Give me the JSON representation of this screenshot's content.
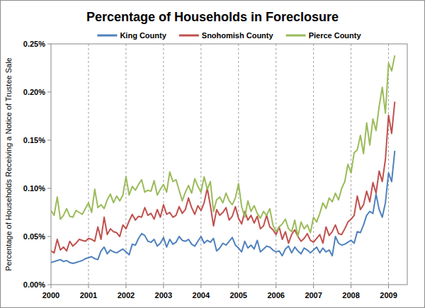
{
  "chart_data": {
    "type": "line",
    "title": "Percentage of Households in Foreclosure",
    "y_label": "Percentage of Households Receiving a Notice of Trustee Sale",
    "categories": [
      "2000",
      null,
      null,
      null,
      null,
      null,
      null,
      null,
      null,
      null,
      null,
      null,
      "2001",
      null,
      null,
      null,
      null,
      null,
      null,
      null,
      null,
      null,
      null,
      null,
      "2002",
      null,
      null,
      null,
      null,
      null,
      null,
      null,
      null,
      null,
      null,
      null,
      "2003",
      null,
      null,
      null,
      null,
      null,
      null,
      null,
      null,
      null,
      null,
      null,
      "2004",
      null,
      null,
      null,
      null,
      null,
      null,
      null,
      null,
      null,
      null,
      null,
      "2005",
      null,
      null,
      null,
      null,
      null,
      null,
      null,
      null,
      null,
      null,
      null,
      "2006",
      null,
      null,
      null,
      null,
      null,
      null,
      null,
      null,
      null,
      null,
      null,
      "2007",
      null,
      null,
      null,
      null,
      null,
      null,
      null,
      null,
      null,
      null,
      null,
      "2008",
      null,
      null,
      null,
      null,
      null,
      null,
      null,
      null,
      null,
      null,
      null,
      "2009",
      null,
      null
    ],
    "series": [
      {
        "name": "King County",
        "color": "#4f81bd",
        "values": [
          0.023,
          0.024,
          0.025,
          0.026,
          0.024,
          0.025,
          0.023,
          0.022,
          0.023,
          0.024,
          0.025,
          0.027,
          0.028,
          0.029,
          0.027,
          0.026,
          0.035,
          0.039,
          0.032,
          0.036,
          0.034,
          0.033,
          0.035,
          0.037,
          0.034,
          0.031,
          0.042,
          0.041,
          0.048,
          0.053,
          0.051,
          0.045,
          0.044,
          0.047,
          0.04,
          0.043,
          0.049,
          0.039,
          0.047,
          0.042,
          0.044,
          0.05,
          0.046,
          0.045,
          0.047,
          0.042,
          0.04,
          0.045,
          0.05,
          0.043,
          0.046,
          0.044,
          0.048,
          0.035,
          0.038,
          0.043,
          0.041,
          0.045,
          0.049,
          0.041,
          0.038,
          0.034,
          0.045,
          0.038,
          0.041,
          0.037,
          0.046,
          0.034,
          0.037,
          0.04,
          0.039,
          0.036,
          0.034,
          0.035,
          0.03,
          0.037,
          0.04,
          0.033,
          0.039,
          0.035,
          0.032,
          0.038,
          0.036,
          0.033,
          0.036,
          0.039,
          0.033,
          0.038,
          0.034,
          0.036,
          0.03,
          0.05,
          0.043,
          0.041,
          0.042,
          0.044,
          0.046,
          0.043,
          0.055,
          0.054,
          0.062,
          0.072,
          0.076,
          0.074,
          0.094,
          0.078,
          0.07,
          0.085,
          0.116,
          0.107,
          0.139
        ]
      },
      {
        "name": "Snohomish County",
        "color": "#c0504d",
        "values": [
          0.035,
          0.033,
          0.047,
          0.036,
          0.039,
          0.035,
          0.045,
          0.04,
          0.043,
          0.047,
          0.046,
          0.045,
          0.048,
          0.047,
          0.045,
          0.06,
          0.047,
          0.07,
          0.052,
          0.058,
          0.055,
          0.054,
          0.05,
          0.062,
          0.058,
          0.066,
          0.073,
          0.067,
          0.071,
          0.07,
          0.08,
          0.072,
          0.074,
          0.068,
          0.078,
          0.07,
          0.083,
          0.073,
          0.075,
          0.07,
          0.072,
          0.081,
          0.074,
          0.078,
          0.09,
          0.08,
          0.073,
          0.082,
          0.077,
          0.085,
          0.1,
          0.082,
          0.061,
          0.078,
          0.072,
          0.075,
          0.08,
          0.067,
          0.071,
          0.081,
          0.069,
          0.063,
          0.076,
          0.067,
          0.072,
          0.064,
          0.071,
          0.058,
          0.061,
          0.072,
          0.06,
          0.057,
          0.052,
          0.06,
          0.047,
          0.055,
          0.043,
          0.052,
          0.057,
          0.05,
          0.045,
          0.048,
          0.053,
          0.046,
          0.044,
          0.048,
          0.052,
          0.043,
          0.06,
          0.051,
          0.055,
          0.062,
          0.053,
          0.052,
          0.058,
          0.065,
          0.068,
          0.072,
          0.092,
          0.078,
          0.083,
          0.097,
          0.086,
          0.106,
          0.095,
          0.118,
          0.107,
          0.13,
          0.176,
          0.157,
          0.19
        ]
      },
      {
        "name": "Pierce County",
        "color": "#9bbb59",
        "values": [
          0.077,
          0.072,
          0.091,
          0.068,
          0.072,
          0.079,
          0.071,
          0.07,
          0.077,
          0.075,
          0.073,
          0.079,
          0.085,
          0.075,
          0.099,
          0.08,
          0.083,
          0.079,
          0.088,
          0.094,
          0.085,
          0.092,
          0.087,
          0.093,
          0.112,
          0.093,
          0.102,
          0.098,
          0.104,
          0.109,
          0.096,
          0.098,
          0.097,
          0.108,
          0.093,
          0.099,
          0.104,
          0.096,
          0.117,
          0.107,
          0.109,
          0.098,
          0.087,
          0.096,
          0.103,
          0.095,
          0.11,
          0.102,
          0.096,
          0.112,
          0.099,
          0.107,
          0.076,
          0.088,
          0.091,
          0.085,
          0.095,
          0.087,
          0.083,
          0.09,
          0.105,
          0.081,
          0.07,
          0.087,
          0.076,
          0.082,
          0.074,
          0.069,
          0.076,
          0.072,
          0.079,
          0.062,
          0.055,
          0.06,
          0.063,
          0.068,
          0.058,
          0.055,
          0.067,
          0.05,
          0.065,
          0.058,
          0.062,
          0.054,
          0.07,
          0.065,
          0.074,
          0.085,
          0.079,
          0.09,
          0.086,
          0.095,
          0.088,
          0.1,
          0.107,
          0.125,
          0.116,
          0.137,
          0.14,
          0.155,
          0.136,
          0.168,
          0.145,
          0.172,
          0.16,
          0.185,
          0.205,
          0.178,
          0.23,
          0.222,
          0.238
        ]
      }
    ],
    "ylim": [
      0,
      0.25
    ],
    "yticks": [
      {
        "value": 0,
        "label": "0.00%"
      },
      {
        "value": 0.05,
        "label": "0.05%"
      },
      {
        "value": 0.1,
        "label": "0.10%"
      },
      {
        "value": 0.15,
        "label": "0.15%"
      },
      {
        "value": 0.2,
        "label": "0.20%"
      },
      {
        "value": 0.25,
        "label": "0.25%"
      }
    ],
    "grid": true,
    "legend": "top"
  }
}
